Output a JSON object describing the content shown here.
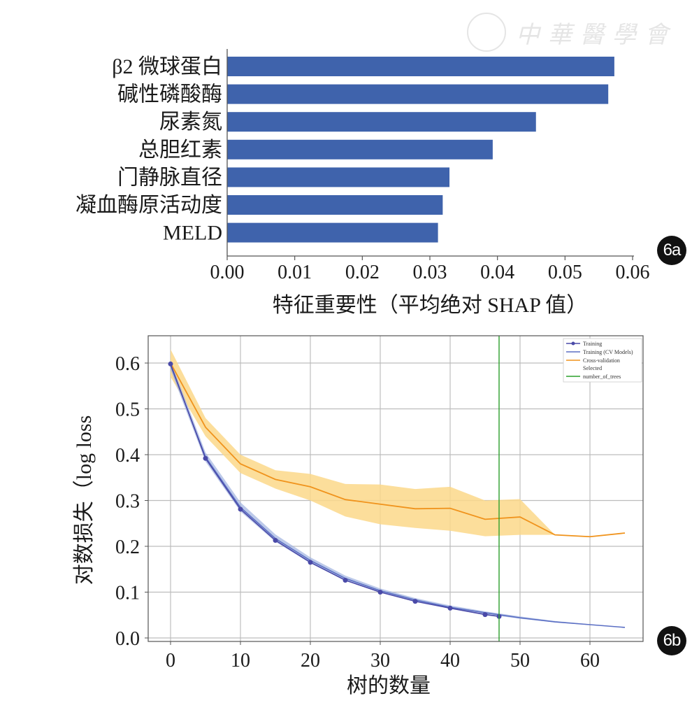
{
  "watermark": {
    "text": "中華醫學會"
  },
  "chart_data": [
    {
      "id": "6a",
      "type": "bar",
      "orientation": "horizontal",
      "badge": "6a",
      "categories": [
        "β2 微球蛋白",
        "碱性磷酸酶",
        "尿素氮",
        "总胆红素",
        "门静脉直径",
        "凝血酶原活动度",
        "MELD"
      ],
      "values": [
        0.0573,
        0.0564,
        0.0457,
        0.0393,
        0.0329,
        0.0319,
        0.0312
      ],
      "xlabel": "特征重要性（平均绝对 SHAP 值）",
      "ylabel": "",
      "xlim": [
        0,
        0.06
      ],
      "xticks": [
        "0.00",
        "0.01",
        "0.02",
        "0.03",
        "0.04",
        "0.05",
        "0.06"
      ],
      "grid": false,
      "bar_color": "#3f63ac"
    },
    {
      "id": "6b",
      "type": "line",
      "badge": "6b",
      "xlabel": "树的数量",
      "ylabel": "对数损失（log loss",
      "xlim": [
        -3,
        68
      ],
      "ylim": [
        -0.005,
        0.66
      ],
      "xticks": [
        "0",
        "10",
        "20",
        "30",
        "40",
        "50",
        "60"
      ],
      "yticks": [
        "0.0",
        "0.1",
        "0.2",
        "0.3",
        "0.4",
        "0.5",
        "0.6"
      ],
      "grid": true,
      "legend_position": "top-right",
      "legend": [
        "Training",
        "Training (CV Models)",
        "Cross-validation",
        "Selected",
        "number_of_trees"
      ],
      "series": [
        {
          "name": "Training",
          "color": "#4a4aa8",
          "marker": "circle",
          "x": [
            0,
            5,
            10,
            15,
            20,
            25,
            30,
            35,
            40,
            45,
            47
          ],
          "y": [
            0.598,
            0.392,
            0.281,
            0.213,
            0.165,
            0.126,
            0.1,
            0.08,
            0.065,
            0.051,
            0.047
          ]
        },
        {
          "name": "Training (CV Models)",
          "color": "#5b6fc4",
          "band_color": "#9fb2e0",
          "x": [
            0,
            5,
            10,
            15,
            20,
            25,
            30,
            35,
            40,
            45,
            50,
            55,
            60,
            65
          ],
          "y": [
            0.595,
            0.395,
            0.285,
            0.217,
            0.169,
            0.13,
            0.103,
            0.083,
            0.067,
            0.055,
            0.044,
            0.035,
            0.029,
            0.023
          ],
          "lower": [
            0.585,
            0.385,
            0.276,
            0.21,
            0.163,
            0.125,
            0.099,
            0.079,
            0.064,
            0.052,
            0.042,
            0.034,
            0.028,
            0.023
          ],
          "upper": [
            0.605,
            0.405,
            0.296,
            0.226,
            0.176,
            0.136,
            0.108,
            0.087,
            0.071,
            0.058,
            0.047,
            0.037,
            0.03,
            0.024
          ]
        },
        {
          "name": "Cross-validation",
          "color": "#f0931c",
          "band_color": "#fcd88a",
          "x": [
            0,
            5,
            10,
            15,
            20,
            25,
            30,
            35,
            40,
            45,
            50,
            55,
            60,
            65
          ],
          "y": [
            0.6,
            0.46,
            0.38,
            0.346,
            0.33,
            0.302,
            0.292,
            0.282,
            0.283,
            0.259,
            0.264,
            0.225,
            0.221,
            0.229
          ],
          "lower": [
            0.57,
            0.44,
            0.36,
            0.326,
            0.3,
            0.265,
            0.248,
            0.24,
            0.234,
            0.222,
            0.225,
            0.225,
            0.221,
            0.229
          ],
          "upper": [
            0.63,
            0.48,
            0.4,
            0.366,
            0.358,
            0.336,
            0.335,
            0.325,
            0.33,
            0.3,
            0.303,
            0.225,
            0.221,
            0.229
          ]
        }
      ],
      "selected": {
        "name": "number_of_trees",
        "x": 47,
        "color": "#2ca02c"
      }
    }
  ]
}
